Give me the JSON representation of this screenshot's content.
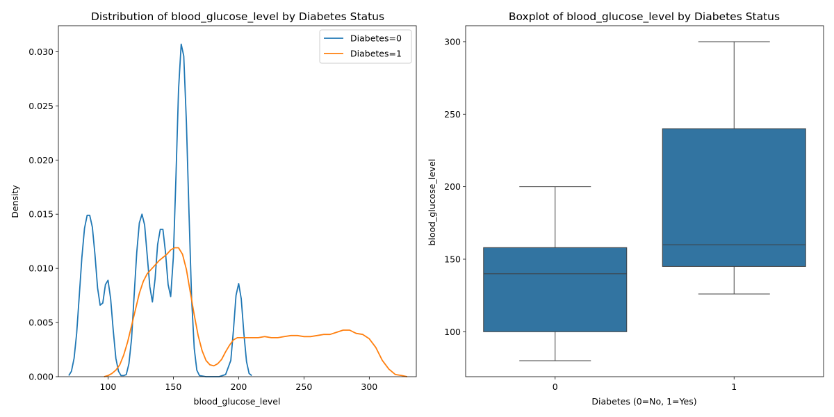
{
  "chart_data": [
    {
      "type": "line",
      "title": "Distribution of blood_glucose_level by Diabetes Status",
      "xlabel": "blood_glucose_level",
      "ylabel": "Density",
      "xlim": [
        62,
        336
      ],
      "ylim": [
        0,
        0.0324
      ],
      "xticks": [
        100,
        150,
        200,
        250,
        300
      ],
      "xtick_labels": [
        "100",
        "150",
        "200",
        "250",
        "300"
      ],
      "yticks": [
        0,
        0.005,
        0.01,
        0.015,
        0.02,
        0.025,
        0.03
      ],
      "ytick_labels": [
        "0.000",
        "0.005",
        "0.010",
        "0.015",
        "0.020",
        "0.025",
        "0.030"
      ],
      "grid": false,
      "legend": "top-right",
      "series": [
        {
          "name": "Diabetes=0",
          "color": "#1f77b4",
          "x": [
            70,
            72,
            74,
            76,
            78,
            80,
            82,
            84,
            86,
            88,
            90,
            92,
            94,
            96,
            98,
            100,
            102,
            104,
            106,
            108,
            110,
            112,
            114,
            116,
            118,
            120,
            122,
            124,
            126,
            128,
            130,
            132,
            134,
            136,
            138,
            140,
            142,
            144,
            146,
            148,
            150,
            152,
            154,
            156,
            158,
            160,
            162,
            164,
            166,
            168,
            170,
            175,
            180,
            185,
            190,
            194,
            196,
            198,
            200,
            202,
            204,
            206,
            208,
            210
          ],
          "y": [
            0.0001,
            0.0005,
            0.0017,
            0.004,
            0.0075,
            0.011,
            0.0137,
            0.0149,
            0.0149,
            0.0138,
            0.0113,
            0.0082,
            0.0066,
            0.0068,
            0.0085,
            0.0089,
            0.0072,
            0.0043,
            0.0017,
            0.0005,
            0.0001,
            0.0001,
            0.0002,
            0.0012,
            0.0035,
            0.0075,
            0.0115,
            0.0142,
            0.015,
            0.014,
            0.0112,
            0.0083,
            0.0069,
            0.009,
            0.0122,
            0.0136,
            0.0136,
            0.0115,
            0.0085,
            0.0074,
            0.011,
            0.0185,
            0.0265,
            0.0307,
            0.0296,
            0.0235,
            0.015,
            0.0072,
            0.0026,
            0.0006,
            0.0001,
            0.0,
            0.0,
            0.0,
            0.0002,
            0.0015,
            0.0043,
            0.0075,
            0.0086,
            0.0072,
            0.004,
            0.0014,
            0.0003,
            0.0001
          ]
        },
        {
          "name": "Diabetes=1",
          "color": "#ff7f0e",
          "x": [
            97,
            100,
            103,
            106,
            109,
            112,
            115,
            118,
            121,
            124,
            127,
            130,
            133,
            136,
            139,
            142,
            145,
            148,
            151,
            154,
            157,
            160,
            163,
            166,
            169,
            172,
            175,
            178,
            181,
            184,
            187,
            190,
            193,
            196,
            199,
            202,
            205,
            210,
            215,
            220,
            225,
            230,
            235,
            240,
            245,
            250,
            255,
            260,
            265,
            270,
            275,
            280,
            285,
            290,
            295,
            300,
            305,
            310,
            315,
            320,
            325,
            329
          ],
          "y": [
            0.0,
            0.0001,
            0.0003,
            0.0006,
            0.0011,
            0.002,
            0.0032,
            0.0047,
            0.0062,
            0.0077,
            0.0088,
            0.0095,
            0.0099,
            0.0103,
            0.0107,
            0.011,
            0.0113,
            0.0117,
            0.0119,
            0.0119,
            0.0113,
            0.0099,
            0.0078,
            0.0057,
            0.0038,
            0.0024,
            0.0015,
            0.0011,
            0.001,
            0.0012,
            0.0016,
            0.0023,
            0.0029,
            0.0034,
            0.0036,
            0.0036,
            0.0036,
            0.0036,
            0.0036,
            0.0037,
            0.0036,
            0.0036,
            0.0037,
            0.0038,
            0.0038,
            0.0037,
            0.0037,
            0.0038,
            0.0039,
            0.0039,
            0.0041,
            0.0043,
            0.0043,
            0.004,
            0.0039,
            0.0035,
            0.0027,
            0.0015,
            0.0007,
            0.0002,
            0.0001,
            0.0
          ]
        }
      ]
    },
    {
      "type": "box",
      "title": "Boxplot of blood_glucose_level by Diabetes Status",
      "xlabel": "Diabetes (0=No, 1=Yes)",
      "ylabel": "blood_glucose_level",
      "ylim": [
        69,
        311
      ],
      "yticks": [
        100,
        150,
        200,
        250,
        300
      ],
      "ytick_labels": [
        "100",
        "150",
        "200",
        "250",
        "300"
      ],
      "categories": [
        "0",
        "1"
      ],
      "color": "#3274a1",
      "grid": false,
      "boxes": [
        {
          "category": "0",
          "whisker_low": 80,
          "q1": 100,
          "median": 140,
          "q3": 158,
          "whisker_high": 200
        },
        {
          "category": "1",
          "whisker_low": 126,
          "q1": 145,
          "median": 160,
          "q3": 240,
          "whisker_high": 300
        }
      ]
    }
  ]
}
